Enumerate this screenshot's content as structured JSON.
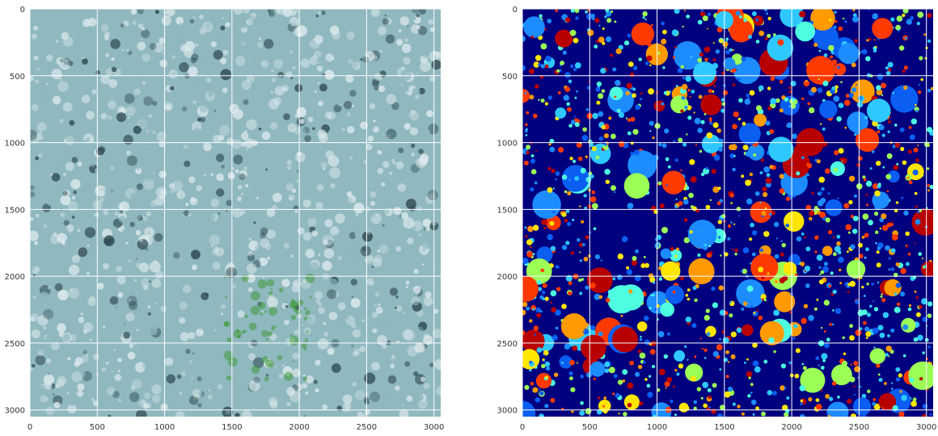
{
  "figure": {
    "background": "#ffffff",
    "grid_color": "#ffffff",
    "tick_color": "#333333"
  },
  "chart_data": [
    {
      "type": "heatmap",
      "image": "reef-orthomosaic-photo",
      "x_range": [
        0,
        3050
      ],
      "y_range": [
        3050,
        0
      ],
      "xticks": [
        0,
        500,
        1000,
        1500,
        2000,
        2500,
        3000
      ],
      "yticks": [
        0,
        500,
        1000,
        1500,
        2000,
        2500,
        3000
      ],
      "xtick_labels": [
        "0",
        "500",
        "1000",
        "1500",
        "2000",
        "2500",
        "3000"
      ],
      "ytick_labels": [
        "0",
        "500",
        "1000",
        "1500",
        "2000",
        "2500",
        "3000"
      ],
      "grid": true,
      "title": "",
      "xlabel": "",
      "ylabel": "",
      "colors": {
        "base": "#8fb8bf",
        "light": "#dde9ec",
        "dark": "#2f4a52",
        "algae": "#3f9a3a"
      }
    },
    {
      "type": "heatmap",
      "image": "segmentation-label-map",
      "colormap": "jet",
      "x_range": [
        0,
        3050
      ],
      "y_range": [
        3050,
        0
      ],
      "xticks": [
        0,
        500,
        1000,
        1500,
        2000,
        2500,
        3000
      ],
      "yticks": [
        0,
        500,
        1000,
        1500,
        2000,
        2500,
        3000
      ],
      "xtick_labels": [
        "0",
        "500",
        "1000",
        "1500",
        "2000",
        "2500",
        "3000"
      ],
      "ytick_labels": [
        "0",
        "500",
        "1000",
        "1500",
        "2000",
        "2500",
        "3000"
      ],
      "grid": true,
      "title": "",
      "xlabel": "",
      "ylabel": "",
      "colors": {
        "background": "#00007f",
        "classes": [
          "#0a5ef2",
          "#1c8cff",
          "#2ec8ff",
          "#4dffe0",
          "#9cff56",
          "#ffe600",
          "#ff9a00",
          "#ff3a00",
          "#b80000"
        ]
      }
    }
  ]
}
